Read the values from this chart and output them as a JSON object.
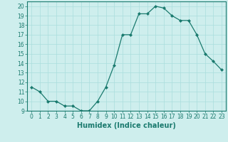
{
  "x": [
    0,
    1,
    2,
    3,
    4,
    5,
    6,
    7,
    8,
    9,
    10,
    11,
    12,
    13,
    14,
    15,
    16,
    17,
    18,
    19,
    20,
    21,
    22,
    23
  ],
  "y": [
    11.5,
    11.0,
    10.0,
    10.0,
    9.5,
    9.5,
    9.0,
    9.0,
    10.0,
    11.5,
    13.8,
    17.0,
    17.0,
    19.2,
    19.2,
    20.0,
    19.8,
    19.0,
    18.5,
    18.5,
    17.0,
    15.0,
    14.2,
    13.3
  ],
  "line_color": "#1a7a6e",
  "marker": "D",
  "markersize": 2.0,
  "linewidth": 0.9,
  "bg_color": "#ceeeed",
  "grid_color": "#aadddd",
  "xlabel": "Humidex (Indice chaleur)",
  "xlabel_fontsize": 7,
  "xlim": [
    -0.5,
    23.5
  ],
  "ylim": [
    9,
    20.5
  ],
  "yticks": [
    9,
    10,
    11,
    12,
    13,
    14,
    15,
    16,
    17,
    18,
    19,
    20
  ],
  "xticks": [
    0,
    1,
    2,
    3,
    4,
    5,
    6,
    7,
    8,
    9,
    10,
    11,
    12,
    13,
    14,
    15,
    16,
    17,
    18,
    19,
    20,
    21,
    22,
    23
  ],
  "tick_fontsize": 5.5,
  "axes_color": "#1a7a6e",
  "grid_linewidth": 0.5
}
